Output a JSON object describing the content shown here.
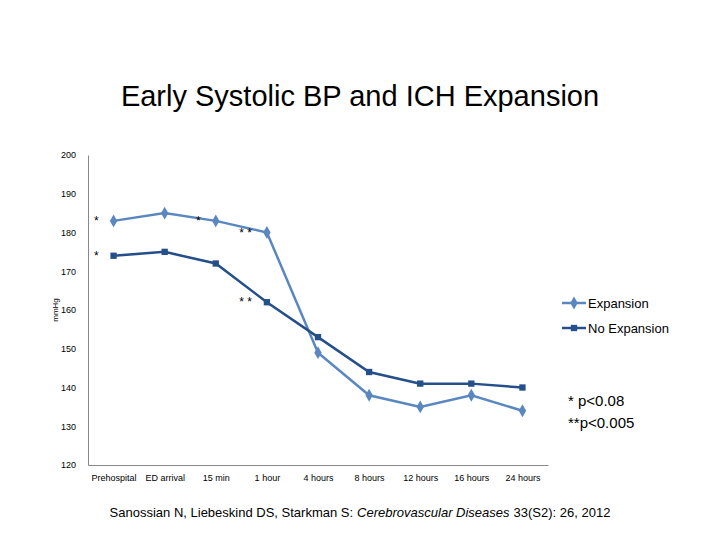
{
  "chart_data": {
    "type": "line",
    "title": "Early Systolic BP and ICH Expansion",
    "y_label": "mmHg",
    "categories": [
      "Prehospital",
      "ED arrival",
      "15 min",
      "1 hour",
      "4 hours",
      "8 hours",
      "12 hours",
      "16 hours",
      "24 hours"
    ],
    "series": [
      {
        "name": "Expansion",
        "color": "#5b87c0",
        "marker": "diamond",
        "values": [
          183,
          185,
          183,
          180,
          149,
          138,
          135,
          138,
          134
        ]
      },
      {
        "name": "No Expansion",
        "color": "#254f8a",
        "marker": "square",
        "values": [
          174,
          175,
          172,
          162,
          153,
          144,
          141,
          141,
          140
        ]
      }
    ],
    "ylim": [
      120,
      200
    ],
    "yticks": [
      120,
      130,
      140,
      150,
      160,
      170,
      180,
      190,
      200
    ],
    "grid": false,
    "legend": "right",
    "annotations": [
      {
        "text": "*",
        "series": "Expansion",
        "category": "Prehospital"
      },
      {
        "text": "*",
        "series": "Expansion",
        "category": "15 min"
      },
      {
        "text": "* *",
        "series": "Expansion",
        "category": "1 hour"
      },
      {
        "text": "*",
        "series": "No Expansion",
        "category": "Prehospital"
      },
      {
        "text": "* *",
        "series": "No Expansion",
        "category": "1 hour"
      }
    ],
    "notes": [
      "* p<0.08",
      "**p<0.005"
    ],
    "source": {
      "authors": "Sanossian N, Liebeskind DS, Starkman S:",
      "journal": "Cerebrovascular Diseases",
      "details": "33(S2): 26, 2012"
    }
  }
}
